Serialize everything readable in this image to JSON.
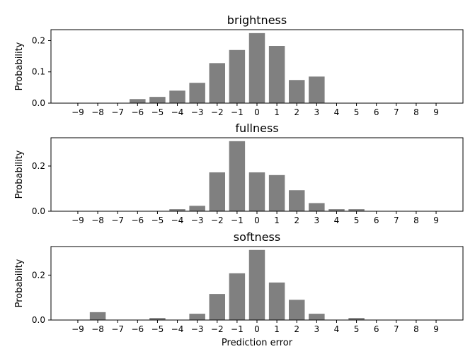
{
  "chart_data": [
    {
      "type": "bar",
      "title": "brightness",
      "xlabel": "",
      "ylabel": "Probability",
      "categories": [
        "−9",
        "−8",
        "−7",
        "−6",
        "−5",
        "−4",
        "−3",
        "−2",
        "−1",
        "0",
        "1",
        "2",
        "3",
        "4",
        "5",
        "6",
        "7",
        "8",
        "9"
      ],
      "values": [
        0,
        0,
        0,
        0.013,
        0.02,
        0.04,
        0.065,
        0.128,
        0.17,
        0.224,
        0.183,
        0.074,
        0.085,
        0,
        0,
        0,
        0,
        0,
        0
      ],
      "yticks": [
        "0.0",
        "0.1",
        "0.2"
      ],
      "ylim": [
        0,
        0.235
      ],
      "bar_color": "#808080"
    },
    {
      "type": "bar",
      "title": "fullness",
      "xlabel": "",
      "ylabel": "Probability",
      "categories": [
        "−9",
        "−8",
        "−7",
        "−6",
        "−5",
        "−4",
        "−3",
        "−2",
        "−1",
        "0",
        "1",
        "2",
        "3",
        "4",
        "5",
        "6",
        "7",
        "8",
        "9"
      ],
      "values": [
        0,
        0,
        0,
        0,
        0,
        0.009,
        0.024,
        0.172,
        0.31,
        0.172,
        0.16,
        0.093,
        0.036,
        0.009,
        0.009,
        0,
        0,
        0,
        0
      ],
      "yticks": [
        "0.0",
        "0.2"
      ],
      "ylim": [
        0,
        0.325
      ],
      "bar_color": "#808080"
    },
    {
      "type": "bar",
      "title": "softness",
      "xlabel": "Prediction error",
      "ylabel": "Probability",
      "categories": [
        "−9",
        "−8",
        "−7",
        "−6",
        "−5",
        "−4",
        "−3",
        "−2",
        "−1",
        "0",
        "1",
        "2",
        "3",
        "4",
        "5",
        "6",
        "7",
        "8",
        "9"
      ],
      "values": [
        0,
        0.035,
        0,
        0,
        0.009,
        0,
        0.028,
        0.116,
        0.208,
        0.312,
        0.167,
        0.09,
        0.028,
        0,
        0.009,
        0,
        0,
        0,
        0
      ],
      "yticks": [
        "0.0",
        "0.2"
      ],
      "ylim": [
        0,
        0.327
      ],
      "bar_color": "#808080"
    }
  ]
}
